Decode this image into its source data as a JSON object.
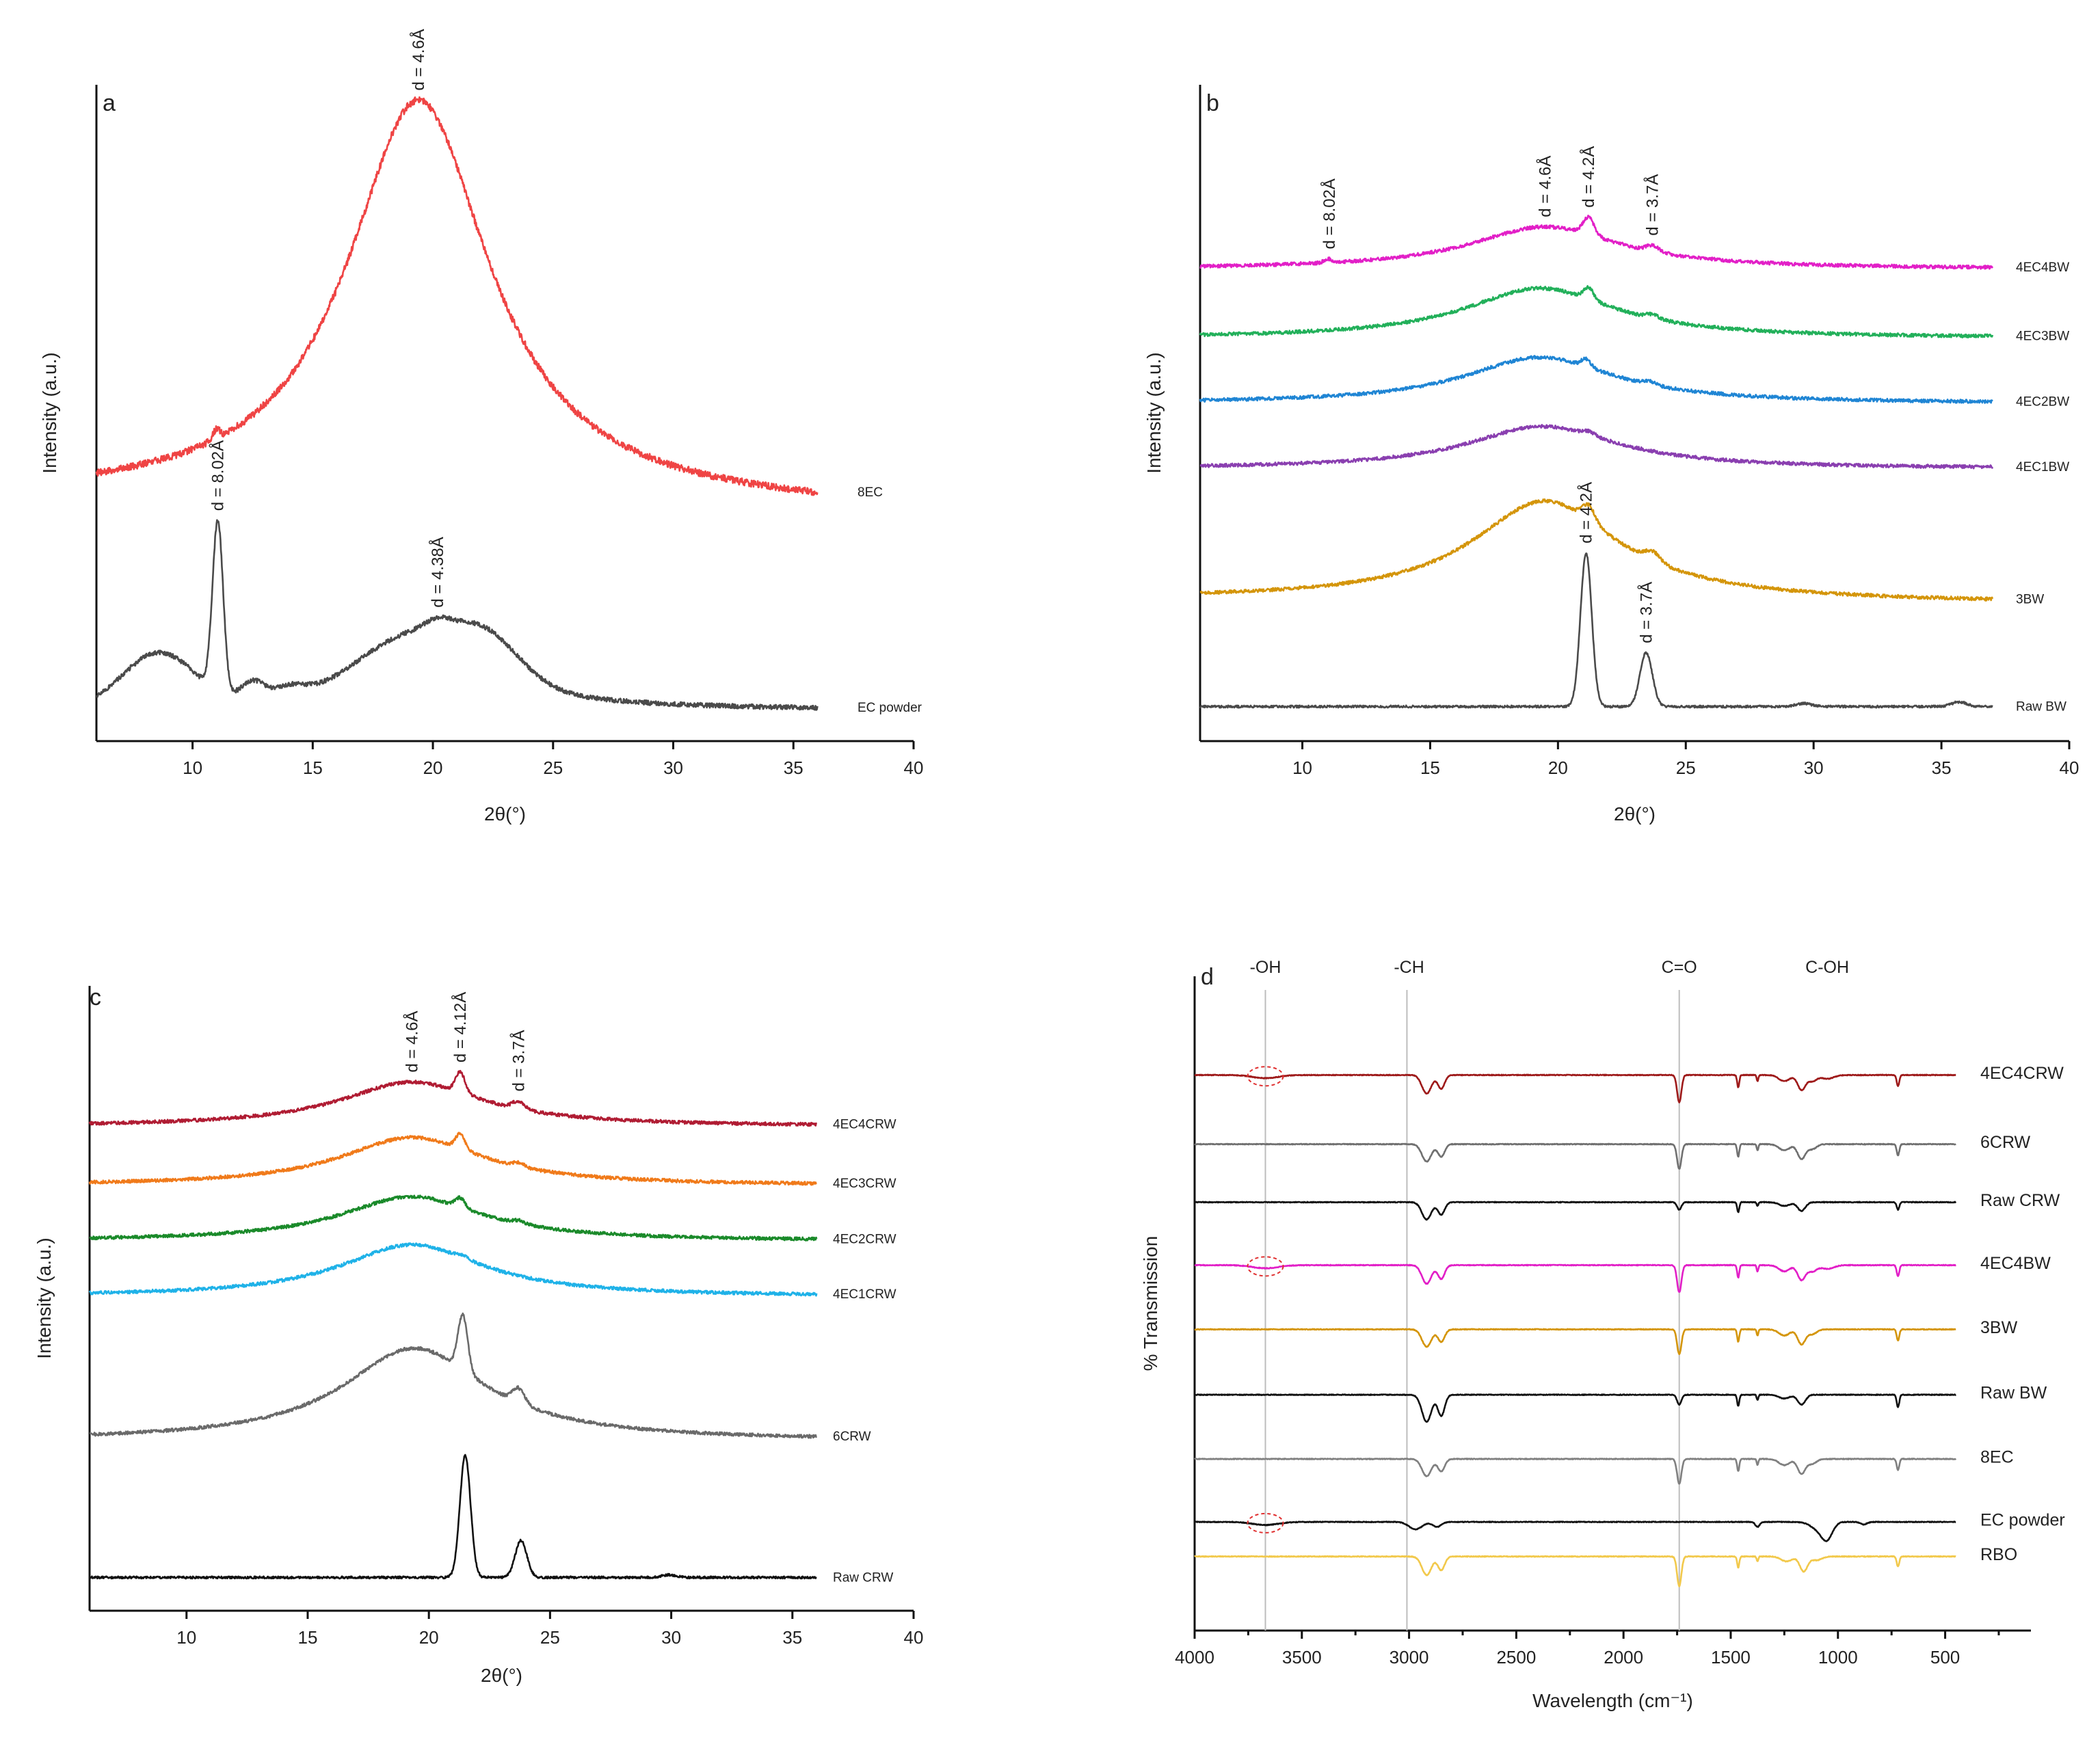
{
  "chart_data": [
    {
      "panel": "a",
      "type": "line",
      "xlabel": "2θ(°)",
      "ylabel": "Intensity (a.u.)",
      "xlim": [
        6,
        40
      ],
      "xticks": [
        10,
        15,
        20,
        25,
        30,
        35,
        40
      ],
      "yticks_shown": false,
      "series": [
        {
          "name": "8EC",
          "color": "#ef4444",
          "xrange": [
            6,
            36
          ],
          "offset": 54,
          "noise": 0.9,
          "baseline": [
            [
              6,
              0.5
            ],
            [
              20,
              0
            ],
            [
              36,
              -2.2
            ]
          ],
          "components": [
            {
              "shape": "lorentz",
              "center": 19.4,
              "width": 3.6,
              "height": 104
            },
            {
              "shape": "gauss",
              "center": 11.0,
              "width": 0.14,
              "height": 2.6
            }
          ]
        },
        {
          "name": "EC powder",
          "color": "#4a4a4a",
          "xrange": [
            6,
            36
          ],
          "offset": 0,
          "noise": 0.6,
          "baseline": [
            [
              6,
              0
            ],
            [
              36,
              0
            ]
          ],
          "components": [
            {
              "shape": "gauss",
              "center": 8.6,
              "width": 1.5,
              "height": 14
            },
            {
              "shape": "gauss",
              "center": 11.05,
              "width": 0.22,
              "height": 44
            },
            {
              "shape": "gauss",
              "center": 12.5,
              "width": 0.5,
              "height": 5
            },
            {
              "shape": "gauss",
              "center": 14.0,
              "width": 0.7,
              "height": 3
            },
            {
              "shape": "gauss",
              "center": 19.0,
              "width": 2.3,
              "height": 13
            },
            {
              "shape": "gauss",
              "center": 22.3,
              "width": 1.4,
              "height": 9
            },
            {
              "shape": "lorentz",
              "center": 21.0,
              "width": 4.5,
              "height": 8
            },
            {
              "shape": "gauss",
              "center": 20.2,
              "width": 0.5,
              "height": 2
            }
          ]
        }
      ],
      "annotations": [
        {
          "text": "d = 4.6Å",
          "x": 19.4,
          "series": "8EC"
        },
        {
          "text": "d = 8.02Å",
          "x": 11.05,
          "series": "EC powder"
        },
        {
          "text": "d = 4.38Å",
          "x": 20.2,
          "series": "EC powder"
        }
      ]
    },
    {
      "panel": "b",
      "type": "line",
      "xlabel": "2θ(°)",
      "ylabel": "Intensity (a.u.)",
      "xlim": [
        6,
        40
      ],
      "xticks": [
        10,
        15,
        20,
        25,
        30,
        35,
        40
      ],
      "yticks_shown": false,
      "series": [
        {
          "name": "4EC4BW",
          "color": "#e21fc7",
          "xrange": [
            6,
            37
          ],
          "offset": 114,
          "noise": 0.45,
          "baseline": [
            [
              6,
              0
            ],
            [
              37,
              0
            ]
          ],
          "components": [
            {
              "shape": "lorentz",
              "center": 19.5,
              "width": 3.6,
              "height": 11
            },
            {
              "shape": "gauss",
              "center": 21.2,
              "width": 0.22,
              "height": 4.5
            },
            {
              "shape": "gauss",
              "center": 23.7,
              "width": 0.25,
              "height": 1.5
            },
            {
              "shape": "gauss",
              "center": 11.0,
              "width": 0.15,
              "height": 1
            }
          ]
        },
        {
          "name": "4EC3BW",
          "color": "#22b05a",
          "xrange": [
            6,
            37
          ],
          "offset": 96,
          "noise": 0.45,
          "baseline": [
            [
              6,
              0
            ],
            [
              37,
              0
            ]
          ],
          "components": [
            {
              "shape": "lorentz",
              "center": 19.3,
              "width": 3.6,
              "height": 13
            },
            {
              "shape": "gauss",
              "center": 21.2,
              "width": 0.2,
              "height": 3
            },
            {
              "shape": "gauss",
              "center": 23.7,
              "width": 0.25,
              "height": 1
            }
          ]
        },
        {
          "name": "4EC2BW",
          "color": "#1f85d4",
          "xrange": [
            6,
            37
          ],
          "offset": 79,
          "noise": 0.45,
          "baseline": [
            [
              6,
              0
            ],
            [
              37,
              0
            ]
          ],
          "components": [
            {
              "shape": "lorentz",
              "center": 19.3,
              "width": 3.6,
              "height": 12
            },
            {
              "shape": "gauss",
              "center": 21.1,
              "width": 0.18,
              "height": 2
            },
            {
              "shape": "gauss",
              "center": 23.6,
              "width": 0.25,
              "height": 0.8
            }
          ]
        },
        {
          "name": "4EC1BW",
          "color": "#8a3fb0",
          "xrange": [
            6,
            37
          ],
          "offset": 62,
          "noise": 0.45,
          "baseline": [
            [
              6,
              0
            ],
            [
              37,
              0
            ]
          ],
          "components": [
            {
              "shape": "lorentz",
              "center": 19.4,
              "width": 3.6,
              "height": 11
            },
            {
              "shape": "gauss",
              "center": 21.2,
              "width": 0.25,
              "height": 1
            }
          ]
        },
        {
          "name": "3BW",
          "color": "#d4950a",
          "xrange": [
            6,
            37
          ],
          "offset": 27,
          "noise": 0.45,
          "baseline": [
            [
              6,
              1
            ],
            [
              37,
              0
            ]
          ],
          "components": [
            {
              "shape": "lorentz",
              "center": 19.5,
              "width": 3.5,
              "height": 26
            },
            {
              "shape": "gauss",
              "center": 21.2,
              "width": 0.25,
              "height": 4
            },
            {
              "shape": "gauss",
              "center": 23.7,
              "width": 0.3,
              "height": 2.5
            }
          ]
        },
        {
          "name": "Raw BW",
          "color": "#4a4a4a",
          "xrange": [
            6,
            37
          ],
          "offset": 0,
          "noise": 0.3,
          "baseline": [
            [
              6,
              0
            ],
            [
              37,
              0
            ]
          ],
          "components": [
            {
              "shape": "gauss",
              "center": 21.1,
              "width": 0.22,
              "height": 40
            },
            {
              "shape": "gauss",
              "center": 23.45,
              "width": 0.24,
              "height": 14
            },
            {
              "shape": "gauss",
              "center": 29.6,
              "width": 0.3,
              "height": 0.8
            },
            {
              "shape": "gauss",
              "center": 35.7,
              "width": 0.3,
              "height": 1.2
            }
          ]
        }
      ],
      "annotations": [
        {
          "text": "d = 8.02Å",
          "x": 11.05,
          "series": "4EC4BW"
        },
        {
          "text": "d = 4.6Å",
          "x": 19.5,
          "series": "4EC4BW"
        },
        {
          "text": "d = 4.2Å",
          "x": 21.2,
          "series": "4EC4BW"
        },
        {
          "text": "d = 3.7Å",
          "x": 23.7,
          "series": "4EC4BW"
        },
        {
          "text": "d = 4.2Å",
          "x": 21.1,
          "series": "Raw BW"
        },
        {
          "text": "d = 3.7Å",
          "x": 23.45,
          "series": "Raw BW"
        }
      ]
    },
    {
      "panel": "c",
      "type": "line",
      "xlabel": "2θ(°)",
      "ylabel": "Intensity (a.u.)",
      "xlim": [
        6,
        40
      ],
      "xticks": [
        10,
        15,
        20,
        25,
        30,
        35,
        40
      ],
      "yticks_shown": false,
      "series": [
        {
          "name": "4EC4CRW",
          "color": "#b01c33",
          "xrange": [
            6,
            36
          ],
          "offset": 122,
          "noise": 0.45,
          "baseline": [
            [
              6,
              0
            ],
            [
              36,
              0
            ]
          ],
          "components": [
            {
              "shape": "lorentz",
              "center": 19.3,
              "width": 3.6,
              "height": 12
            },
            {
              "shape": "gauss",
              "center": 21.3,
              "width": 0.2,
              "height": 5.5
            },
            {
              "shape": "gauss",
              "center": 23.7,
              "width": 0.25,
              "height": 2
            }
          ]
        },
        {
          "name": "4EC3CRW",
          "color": "#f07a1a",
          "xrange": [
            6,
            36
          ],
          "offset": 106,
          "noise": 0.45,
          "baseline": [
            [
              6,
              0
            ],
            [
              36,
              0
            ]
          ],
          "components": [
            {
              "shape": "lorentz",
              "center": 19.3,
              "width": 3.6,
              "height": 13
            },
            {
              "shape": "gauss",
              "center": 21.3,
              "width": 0.2,
              "height": 4
            },
            {
              "shape": "gauss",
              "center": 23.7,
              "width": 0.25,
              "height": 1
            }
          ]
        },
        {
          "name": "4EC2CRW",
          "color": "#1a8a2a",
          "xrange": [
            6,
            36
          ],
          "offset": 91,
          "noise": 0.45,
          "baseline": [
            [
              6,
              0
            ],
            [
              36,
              0
            ]
          ],
          "components": [
            {
              "shape": "lorentz",
              "center": 19.3,
              "width": 3.6,
              "height": 12
            },
            {
              "shape": "gauss",
              "center": 21.3,
              "width": 0.2,
              "height": 2.5
            },
            {
              "shape": "gauss",
              "center": 23.7,
              "width": 0.25,
              "height": 0.8
            }
          ]
        },
        {
          "name": "4EC1CRW",
          "color": "#1fb2e8",
          "xrange": [
            6,
            36
          ],
          "offset": 76,
          "noise": 0.45,
          "baseline": [
            [
              6,
              0
            ],
            [
              36,
              0
            ]
          ],
          "components": [
            {
              "shape": "lorentz",
              "center": 19.3,
              "width": 3.6,
              "height": 14
            },
            {
              "shape": "gauss",
              "center": 21.4,
              "width": 0.25,
              "height": 0.8
            }
          ]
        },
        {
          "name": "6CRW",
          "color": "#6a6a6a",
          "xrange": [
            6,
            36
          ],
          "offset": 37,
          "noise": 0.45,
          "baseline": [
            [
              6,
              0
            ],
            [
              36,
              0
            ]
          ],
          "components": [
            {
              "shape": "lorentz",
              "center": 19.4,
              "width": 3.6,
              "height": 25
            },
            {
              "shape": "gauss",
              "center": 21.4,
              "width": 0.2,
              "height": 15
            },
            {
              "shape": "gauss",
              "center": 23.7,
              "width": 0.25,
              "height": 4
            }
          ]
        },
        {
          "name": "Raw CRW",
          "color": "#111111",
          "xrange": [
            6,
            36
          ],
          "offset": 0,
          "noise": 0.3,
          "baseline": [
            [
              6,
              0
            ],
            [
              36,
              0
            ]
          ],
          "components": [
            {
              "shape": "gauss",
              "center": 21.5,
              "width": 0.22,
              "height": 33
            },
            {
              "shape": "gauss",
              "center": 23.8,
              "width": 0.24,
              "height": 10
            },
            {
              "shape": "gauss",
              "center": 29.9,
              "width": 0.3,
              "height": 0.7
            }
          ]
        }
      ],
      "annotations": [
        {
          "text": "d = 4.6Å",
          "x": 19.3,
          "series": "4EC4CRW"
        },
        {
          "text": "d = 4.12Å",
          "x": 21.3,
          "series": "4EC4CRW"
        },
        {
          "text": "d = 3.7Å",
          "x": 23.7,
          "series": "4EC4CRW"
        }
      ]
    },
    {
      "panel": "d",
      "type": "line",
      "xlabel": "Wavelength (cm⁻¹)",
      "ylabel": "% Transmission",
      "xlim": [
        4000,
        100
      ],
      "xticks": [
        4000,
        3500,
        3000,
        2500,
        2000,
        1500,
        1000,
        500
      ],
      "yticks_shown": false,
      "band_labels": [
        {
          "text": "-OH",
          "x": 3670
        },
        {
          "text": "-CH",
          "x": 3000
        },
        {
          "text": "C=O",
          "x": 1740
        },
        {
          "text": "C-OH",
          "x": 1050
        }
      ],
      "band_lines": [
        3670,
        3010,
        1740
      ],
      "oh_marked_series": [
        "4EC4CRW",
        "4EC4BW",
        "EC powder"
      ],
      "series": [
        {
          "name": "4EC4CRW",
          "color": "#9e1a1a",
          "profile": "wax_ec",
          "oh_dip": true,
          "offset": 390
        },
        {
          "name": "6CRW",
          "color": "#707070",
          "profile": "wax",
          "oh_dip": false,
          "offset": 334
        },
        {
          "name": "Raw CRW",
          "color": "#111111",
          "profile": "wax_weak",
          "oh_dip": false,
          "offset": 287
        },
        {
          "name": "4EC4BW",
          "color": "#e21fc7",
          "profile": "wax_ec",
          "oh_dip": true,
          "offset": 236
        },
        {
          "name": "3BW",
          "color": "#d4950a",
          "profile": "wax",
          "oh_dip": false,
          "offset": 184
        },
        {
          "name": "Raw BW",
          "color": "#111111",
          "profile": "wax_bw",
          "oh_dip": false,
          "offset": 131
        },
        {
          "name": "8EC",
          "color": "#808080",
          "profile": "wax",
          "oh_dip": false,
          "offset": 79
        },
        {
          "name": "EC powder",
          "color": "#111111",
          "profile": "ec",
          "oh_dip": true,
          "offset": 28
        },
        {
          "name": "RBO",
          "color": "#f2c94c",
          "profile": "oil",
          "oh_dip": false,
          "offset": 0
        }
      ]
    }
  ]
}
